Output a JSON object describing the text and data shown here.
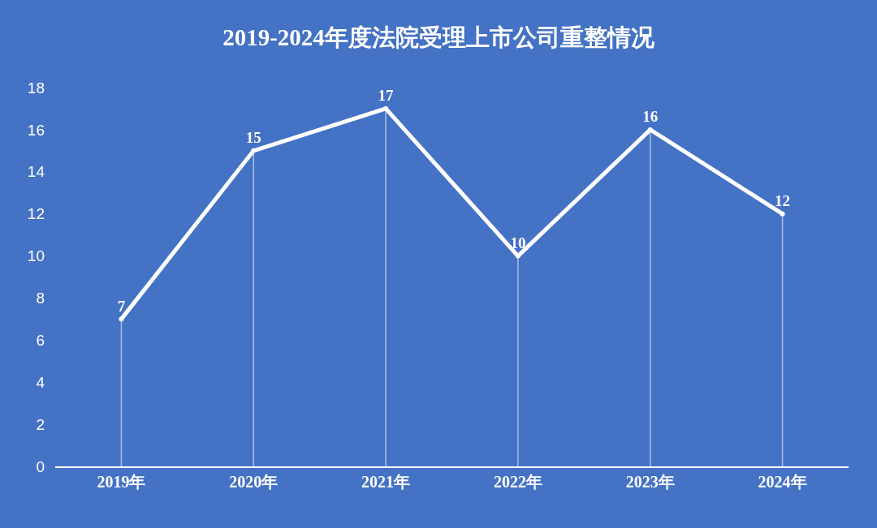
{
  "chart_data": {
    "type": "line",
    "title": "2019-2024年度法院受理上市公司重整情况",
    "categories": [
      "2019年",
      "2020年",
      "2021年",
      "2022年",
      "2023年",
      "2024年"
    ],
    "values": [
      7,
      15,
      17,
      10,
      16,
      12
    ],
    "color": "#ffffff",
    "ylim": [
      0,
      18
    ],
    "yticks": [
      0,
      2,
      4,
      6,
      8,
      10,
      12,
      14,
      16,
      18
    ],
    "grid": "x",
    "data_labels": true,
    "marker": "circle",
    "line_style": "solid"
  }
}
